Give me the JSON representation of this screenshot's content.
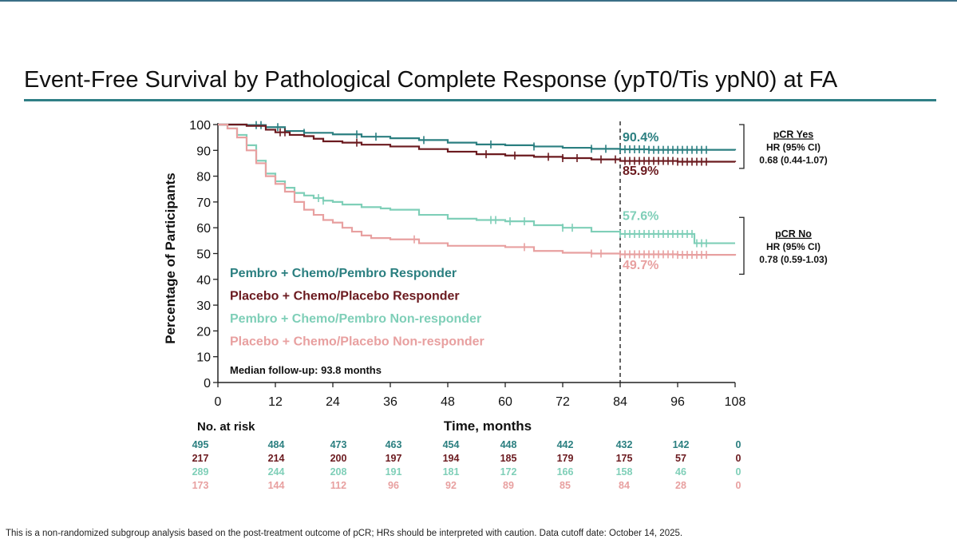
{
  "title": "Event-Free Survival by Pathological Complete Response (ypT0/Tis ypN0) at FA",
  "footnote": "This is a non-randomized subgroup analysis based on the post-treatment outcome of pCR; HRs should be interpreted with caution. Data cutoff date: October 14, 2025.",
  "colors": {
    "title_rule": "#2f7f86",
    "pembro_responder": "#2b7f80",
    "placebo_responder": "#6b1a1f",
    "pembro_nonresponder": "#7fcfb8",
    "placebo_nonresponder": "#e8a0a0"
  },
  "chart_data": {
    "type": "line",
    "ylabel": "Percentage of Participants",
    "xlabel": "Time, months",
    "xlim": [
      0,
      108
    ],
    "ylim": [
      0,
      100
    ],
    "x_ticks": [
      0,
      12,
      24,
      36,
      48,
      60,
      72,
      84,
      96,
      108
    ],
    "y_ticks": [
      0,
      10,
      20,
      30,
      40,
      50,
      60,
      70,
      80,
      90,
      100
    ],
    "grid": false,
    "reference_line_x": 84,
    "median_followup": "Median follow-up: 93.8 months",
    "series": [
      {
        "name": "Pembro + Chemo/Pembro Responder",
        "color": "#2b7f80",
        "points": [
          [
            0,
            100
          ],
          [
            6,
            99.8
          ],
          [
            10,
            99
          ],
          [
            14,
            97.5
          ],
          [
            18,
            96.8
          ],
          [
            24,
            96.2
          ],
          [
            30,
            95.3
          ],
          [
            36,
            94.7
          ],
          [
            42,
            94
          ],
          [
            48,
            93
          ],
          [
            54,
            92.3
          ],
          [
            60,
            92
          ],
          [
            66,
            91.5
          ],
          [
            72,
            91
          ],
          [
            78,
            90.6
          ],
          [
            84,
            90.4
          ],
          [
            90,
            90.2
          ],
          [
            96,
            90.2
          ],
          [
            108,
            90
          ]
        ],
        "censor_x": [
          8,
          9,
          12.5,
          18,
          29,
          33,
          43,
          57,
          66,
          78,
          81,
          84,
          85,
          86,
          87,
          88,
          89,
          90,
          91,
          92,
          93,
          94,
          95,
          96,
          97,
          98,
          99,
          100,
          101,
          102
        ]
      },
      {
        "name": "Placebo + Chemo/Placebo Responder",
        "color": "#6b1a1f",
        "points": [
          [
            0,
            100
          ],
          [
            6,
            99.5
          ],
          [
            10,
            98
          ],
          [
            12,
            97
          ],
          [
            15,
            96
          ],
          [
            18,
            95.5
          ],
          [
            20,
            94.5
          ],
          [
            22,
            93.5
          ],
          [
            26,
            93
          ],
          [
            30,
            92.2
          ],
          [
            36,
            91.5
          ],
          [
            42,
            90.5
          ],
          [
            48,
            89.5
          ],
          [
            54,
            88.5
          ],
          [
            60,
            88
          ],
          [
            66,
            87.5
          ],
          [
            72,
            87
          ],
          [
            78,
            86.5
          ],
          [
            84,
            85.9
          ],
          [
            96,
            85.6
          ],
          [
            108,
            85.5
          ]
        ],
        "censor_x": [
          13,
          14,
          29,
          56,
          62,
          69,
          72,
          75,
          80,
          83,
          85,
          86,
          87,
          88,
          89,
          90,
          91,
          92,
          93,
          94,
          95,
          96,
          97,
          98,
          99,
          100,
          101,
          102
        ]
      },
      {
        "name": "Pembro + Chemo/Pembro Non-responder",
        "color": "#7fcfb8",
        "points": [
          [
            0,
            100
          ],
          [
            2,
            98.5
          ],
          [
            4,
            96
          ],
          [
            6,
            92
          ],
          [
            8,
            86
          ],
          [
            10,
            81
          ],
          [
            12,
            78
          ],
          [
            14,
            75.5
          ],
          [
            16,
            73.5
          ],
          [
            18,
            72.5
          ],
          [
            20,
            71.5
          ],
          [
            22,
            70.5
          ],
          [
            24,
            70
          ],
          [
            26,
            69
          ],
          [
            30,
            68
          ],
          [
            34,
            67.5
          ],
          [
            36,
            67
          ],
          [
            42,
            65
          ],
          [
            48,
            63.5
          ],
          [
            54,
            63
          ],
          [
            60,
            62.5
          ],
          [
            66,
            61
          ],
          [
            72,
            60
          ],
          [
            78,
            58.5
          ],
          [
            84,
            57.6
          ],
          [
            92,
            57.6
          ],
          [
            99,
            57.6
          ],
          [
            99.5,
            54
          ],
          [
            108,
            54
          ]
        ],
        "censor_x": [
          21,
          22,
          57,
          58,
          61,
          64,
          72,
          74,
          84,
          85,
          86,
          87,
          88,
          89,
          90,
          91,
          92,
          93,
          94,
          95,
          96,
          97,
          98,
          99,
          100,
          101,
          102
        ]
      },
      {
        "name": "Placebo + Chemo/Placebo Non-responder",
        "color": "#e8a0a0",
        "points": [
          [
            0,
            100
          ],
          [
            2,
            98.5
          ],
          [
            4,
            95
          ],
          [
            6,
            90
          ],
          [
            8,
            85
          ],
          [
            10,
            80
          ],
          [
            12,
            77
          ],
          [
            14,
            74
          ],
          [
            16,
            70
          ],
          [
            18,
            67
          ],
          [
            20,
            65
          ],
          [
            22,
            63
          ],
          [
            24,
            62
          ],
          [
            26,
            60
          ],
          [
            28,
            58.5
          ],
          [
            30,
            57
          ],
          [
            32,
            56
          ],
          [
            36,
            55.5
          ],
          [
            42,
            54
          ],
          [
            48,
            53
          ],
          [
            54,
            53
          ],
          [
            60,
            52.5
          ],
          [
            66,
            51
          ],
          [
            72,
            50.3
          ],
          [
            78,
            50
          ],
          [
            84,
            49.7
          ],
          [
            96,
            49.5
          ],
          [
            108,
            49.2
          ]
        ],
        "censor_x": [
          41,
          64,
          78,
          80,
          84,
          85,
          86,
          87,
          88,
          89,
          90,
          91,
          92,
          93,
          94,
          95,
          96,
          97,
          98,
          99,
          100,
          101,
          102
        ]
      }
    ],
    "labels": [
      {
        "text": "90.4%",
        "x": 84.5,
        "y": 93.5,
        "series": 0
      },
      {
        "text": "85.9%",
        "x": 84.5,
        "y": 80.5,
        "series": 1
      },
      {
        "text": "57.6%",
        "x": 84.5,
        "y": 63,
        "series": 2
      },
      {
        "text": "49.7%",
        "x": 84.5,
        "y": 44,
        "series": 3
      }
    ],
    "annotations": [
      {
        "heading": "pCR Yes",
        "hr_label": "HR (95% CI)",
        "hr_value": "0.68 (0.44-1.07)",
        "y_top": 100,
        "y_bottom": 83
      },
      {
        "heading": "pCR No",
        "hr_label": "HR (95% CI)",
        "hr_value": "0.78 (0.59-1.03)",
        "y_top": 64,
        "y_bottom": 42
      }
    ],
    "risk_table": {
      "title": "No. at risk",
      "times": [
        0,
        12,
        24,
        36,
        48,
        60,
        72,
        84,
        96,
        108
      ],
      "rows": [
        {
          "series": 0,
          "values": [
            "495",
            "484",
            "473",
            "463",
            "454",
            "448",
            "442",
            "432",
            "142",
            "0"
          ]
        },
        {
          "series": 1,
          "values": [
            "217",
            "214",
            "200",
            "197",
            "194",
            "185",
            "179",
            "175",
            "57",
            "0"
          ]
        },
        {
          "series": 2,
          "values": [
            "289",
            "244",
            "208",
            "191",
            "181",
            "172",
            "166",
            "158",
            "46",
            "0"
          ]
        },
        {
          "series": 3,
          "values": [
            "173",
            "144",
            "112",
            "96",
            "92",
            "89",
            "85",
            "84",
            "28",
            "0"
          ]
        }
      ]
    }
  }
}
